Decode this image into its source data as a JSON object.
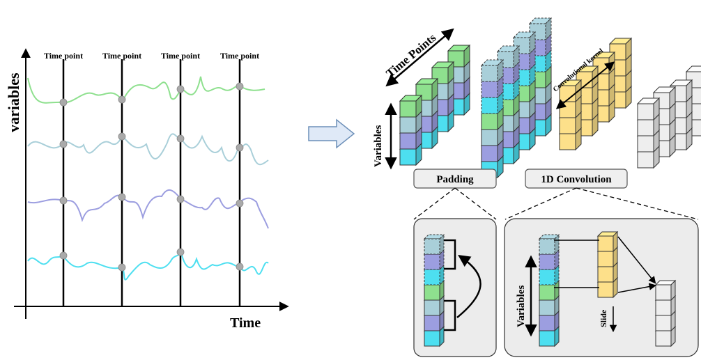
{
  "plot": {
    "y_axis_label": "variables",
    "x_axis_label": "Time",
    "time_point_label": "Time point",
    "time_point_count": 4
  },
  "tensor": {
    "time_points_label": "Time Points",
    "variables_label": "Variables",
    "kernel_label": "Convolutional kernel"
  },
  "stages": {
    "padding_label": "Padding",
    "conv_label": "1D Convolution"
  },
  "detail": {
    "variables_label": "Variables",
    "slide_label": "Slide"
  },
  "colors": {
    "green": "#8ee08e",
    "blue_grey": "#a9cfd9",
    "purple": "#9c9ee0",
    "cyan": "#4ddff0",
    "yellow": "#fde08a",
    "grey_cube": "#eeeeee",
    "panel_bg": "#ececec",
    "arrow_fill": "#dfe9f7"
  }
}
